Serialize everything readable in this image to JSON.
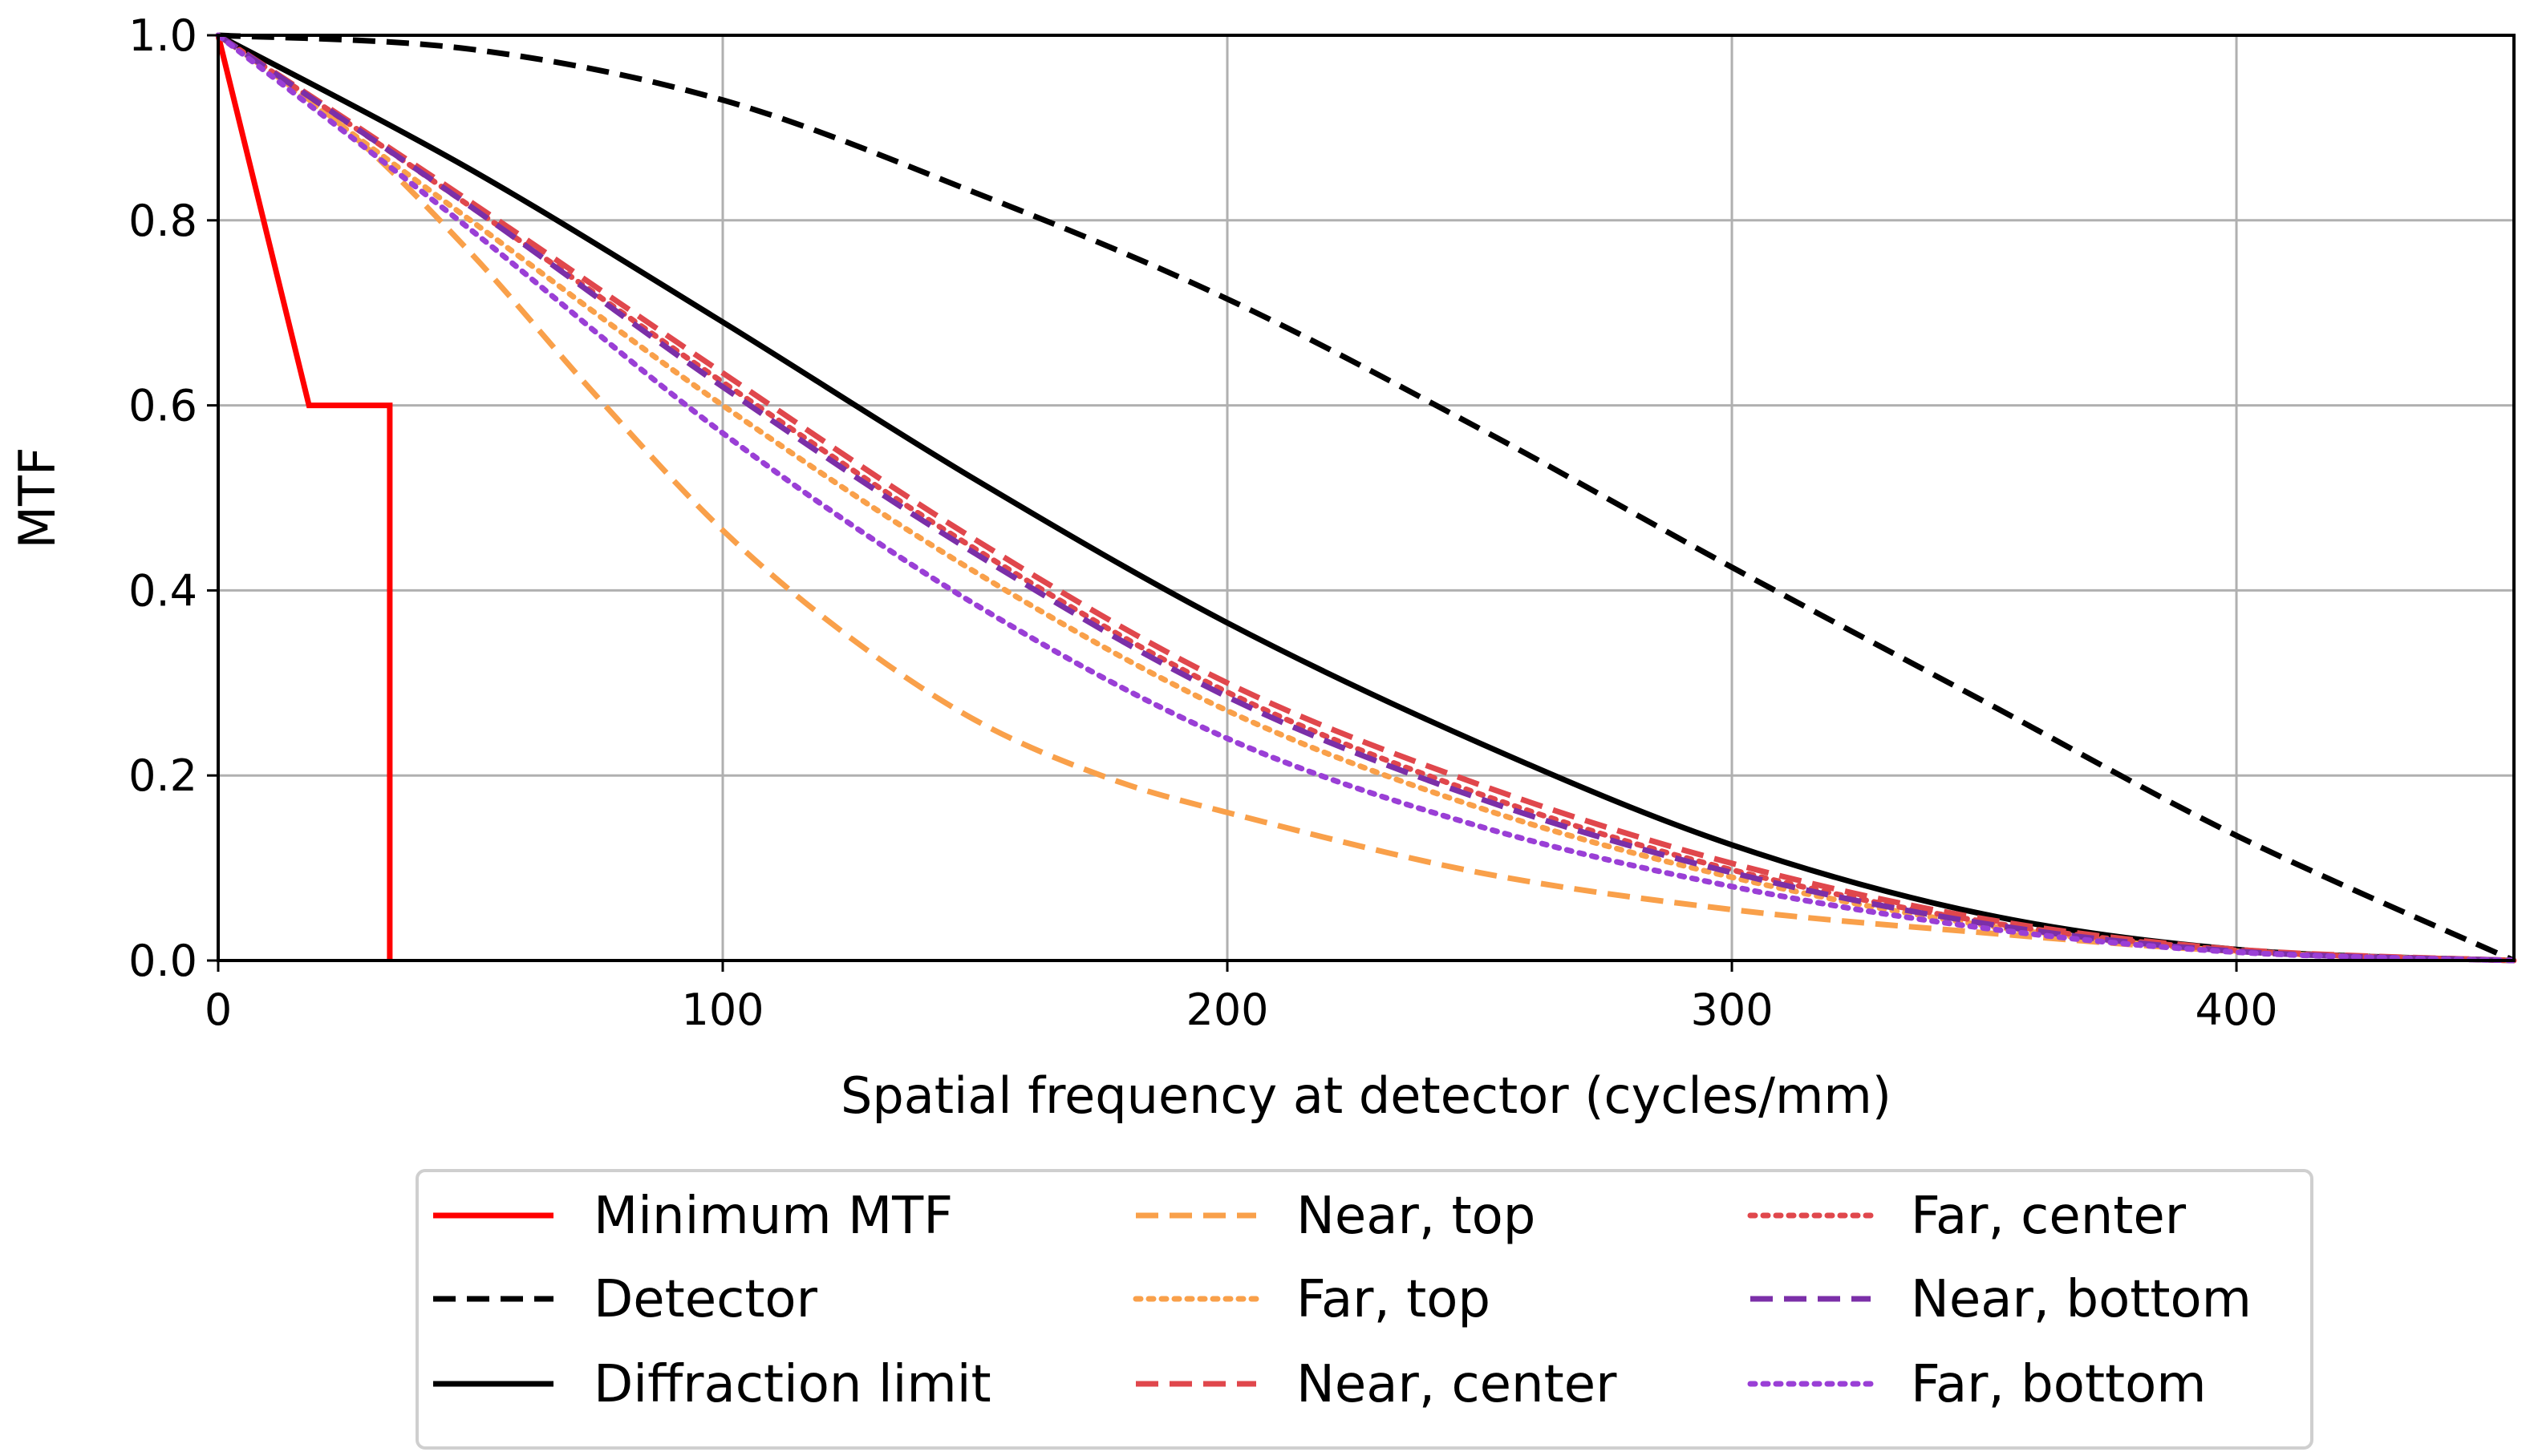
{
  "chart_data": {
    "type": "line",
    "title": "",
    "xlabel": "Spatial frequency at detector (cycles/mm)",
    "ylabel": "MTF",
    "xlim": [
      0,
      455
    ],
    "ylim": [
      0,
      1.0
    ],
    "xticks": [
      0,
      100,
      200,
      300,
      400
    ],
    "xtick_labels": [
      "0",
      "100",
      "200",
      "300",
      "400"
    ],
    "yticks": [
      0.0,
      0.2,
      0.4,
      0.6,
      0.8,
      1.0
    ],
    "ytick_labels": [
      "0.0",
      "0.2",
      "0.4",
      "0.6",
      "0.8",
      "1.0"
    ],
    "grid": true,
    "legend_position": "below-center",
    "series": [
      {
        "name": "Minimum MTF",
        "color": "#ff0000",
        "style": "solid",
        "x": [
          0,
          18,
          34,
          34
        ],
        "y": [
          1.0,
          0.6,
          0.6,
          0.0
        ]
      },
      {
        "name": "Detector",
        "color": "#000000",
        "style": "dashed",
        "x": [
          0,
          50,
          100,
          150,
          200,
          250,
          300,
          350,
          400,
          455
        ],
        "y": [
          1.0,
          0.985,
          0.93,
          0.83,
          0.715,
          0.575,
          0.425,
          0.28,
          0.135,
          0.0
        ]
      },
      {
        "name": "Diffraction limit",
        "color": "#000000",
        "style": "solid",
        "x": [
          0,
          50,
          100,
          150,
          200,
          250,
          300,
          350,
          400,
          455
        ],
        "y": [
          1.0,
          0.855,
          0.69,
          0.52,
          0.365,
          0.235,
          0.125,
          0.05,
          0.012,
          0.0
        ]
      },
      {
        "name": "Near, top",
        "color": "#f9a04a",
        "style": "dashed",
        "x": [
          0,
          25,
          50,
          75,
          100,
          125,
          150,
          175,
          200,
          250,
          300,
          350,
          400,
          455
        ],
        "y": [
          1.0,
          0.9,
          0.765,
          0.61,
          0.465,
          0.35,
          0.26,
          0.2,
          0.16,
          0.095,
          0.055,
          0.03,
          0.01,
          0.0
        ]
      },
      {
        "name": "Far, top",
        "color": "#f9a04a",
        "style": "dotted",
        "x": [
          0,
          50,
          100,
          150,
          200,
          250,
          300,
          350,
          400,
          455
        ],
        "y": [
          1.0,
          0.8,
          0.6,
          0.42,
          0.27,
          0.165,
          0.09,
          0.038,
          0.01,
          0.0
        ]
      },
      {
        "name": "Near, center",
        "color": "#e0474c",
        "style": "dashed",
        "x": [
          0,
          50,
          100,
          150,
          200,
          250,
          300,
          350,
          400,
          455
        ],
        "y": [
          1.0,
          0.82,
          0.635,
          0.455,
          0.3,
          0.19,
          0.105,
          0.045,
          0.012,
          0.0
        ]
      },
      {
        "name": "Far, center",
        "color": "#e0474c",
        "style": "dotted",
        "x": [
          0,
          50,
          100,
          150,
          200,
          250,
          300,
          350,
          400,
          455
        ],
        "y": [
          1.0,
          0.815,
          0.625,
          0.445,
          0.29,
          0.18,
          0.098,
          0.042,
          0.011,
          0.0
        ]
      },
      {
        "name": "Near, bottom",
        "color": "#7b2fa8",
        "style": "dashed",
        "x": [
          0,
          50,
          100,
          150,
          200,
          250,
          300,
          350,
          400,
          455
        ],
        "y": [
          1.0,
          0.815,
          0.62,
          0.44,
          0.285,
          0.175,
          0.095,
          0.04,
          0.01,
          0.0
        ]
      },
      {
        "name": "Far, bottom",
        "color": "#9a3fd6",
        "style": "dotted",
        "x": [
          0,
          50,
          100,
          150,
          200,
          250,
          300,
          350,
          400,
          455
        ],
        "y": [
          1.0,
          0.79,
          0.57,
          0.385,
          0.24,
          0.145,
          0.08,
          0.035,
          0.009,
          0.0
        ]
      }
    ]
  }
}
